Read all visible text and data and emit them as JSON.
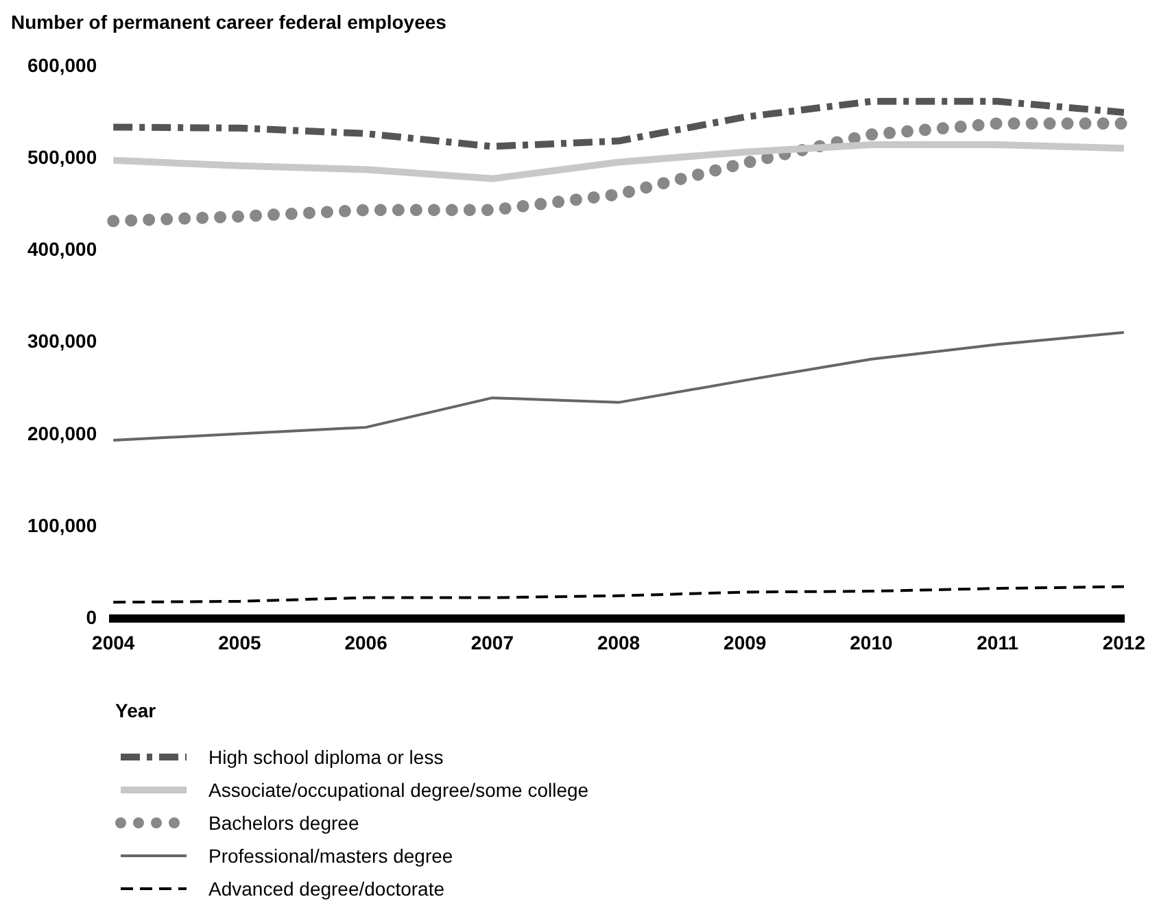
{
  "chart_data": {
    "type": "line",
    "ylabel": "Number of permanent career federal employees",
    "xlabel": "Year",
    "categories": [
      "2004",
      "2005",
      "2006",
      "2007",
      "2008",
      "2009",
      "2010",
      "2011",
      "2012"
    ],
    "series": [
      {
        "name": "High school diploma or less",
        "color": "#555555",
        "line_style": "dashed",
        "values": [
          534000,
          533000,
          527000,
          513000,
          519000,
          545000,
          562000,
          562000,
          550000
        ]
      },
      {
        "name": "Associate/occupational degree/some college",
        "color": "#c8c8c8",
        "line_style": "solid",
        "values": [
          498000,
          492000,
          488000,
          478000,
          496000,
          507000,
          515000,
          515000,
          511000
        ]
      },
      {
        "name": "Bachelors degree",
        "color": "#888888",
        "line_style": "dotted",
        "values": [
          432000,
          437000,
          444000,
          444000,
          461000,
          495000,
          526000,
          538000,
          538000
        ]
      },
      {
        "name": "Professional/masters degree",
        "color": "#666666",
        "line_style": "solid",
        "values": [
          194000,
          201000,
          208000,
          240000,
          235000,
          259000,
          282000,
          298000,
          311000
        ]
      },
      {
        "name": "Advanced degree/doctorate",
        "color": "#000000",
        "line_style": "dashed",
        "values": [
          18000,
          19000,
          23000,
          23000,
          25000,
          29000,
          30000,
          33000,
          35000
        ]
      }
    ],
    "ylim": [
      0,
      600000
    ],
    "yticks": [
      0,
      {
        "value": 100000,
        "label": "100,000"
      },
      {
        "value": 200000,
        "label": "200,000"
      },
      {
        "value": 300000,
        "label": "300,000"
      },
      {
        "value": 400000,
        "label": "400,000"
      },
      {
        "value": 500000,
        "label": "500,000"
      },
      {
        "value": 600000,
        "label": "600,000"
      }
    ],
    "grid": false,
    "legend": "bottom",
    "marker": "none"
  }
}
